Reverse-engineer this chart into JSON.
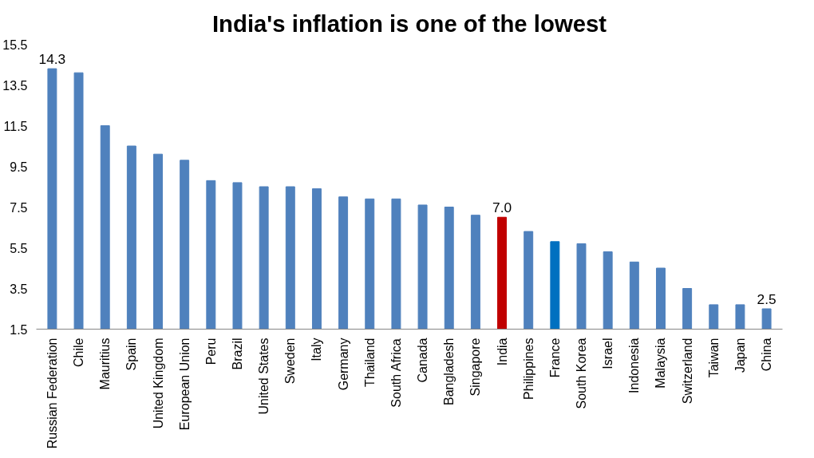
{
  "chart_data": {
    "type": "bar",
    "title": "India's inflation is one of the lowest",
    "categories": [
      "Russian Federation",
      "Chile",
      "Mauritius",
      "Spain",
      "United Kingdom",
      "European Union",
      "Peru",
      "Brazil",
      "United States",
      "Sweden",
      "Italy",
      "Germany",
      "Thailand",
      "South Africa",
      "Canada",
      "Bangladesh",
      "Singapore",
      "India",
      "Philippines",
      "France",
      "South Korea",
      "Israel",
      "Indonesia",
      "Malaysia",
      "Switzerland",
      "Taiwan",
      "Japan",
      "China"
    ],
    "values": [
      14.3,
      14.1,
      11.5,
      10.5,
      10.1,
      9.8,
      8.8,
      8.7,
      8.5,
      8.5,
      8.4,
      8.0,
      7.9,
      7.9,
      7.6,
      7.5,
      7.1,
      7.0,
      6.3,
      5.8,
      5.7,
      5.3,
      4.8,
      4.5,
      3.5,
      2.7,
      2.7,
      2.5
    ],
    "colors": [
      "#4f81bd",
      "#4f81bd",
      "#4f81bd",
      "#4f81bd",
      "#4f81bd",
      "#4f81bd",
      "#4f81bd",
      "#4f81bd",
      "#4f81bd",
      "#4f81bd",
      "#4f81bd",
      "#4f81bd",
      "#4f81bd",
      "#4f81bd",
      "#4f81bd",
      "#4f81bd",
      "#4f81bd",
      "#c00000",
      "#4f81bd",
      "#0070c0",
      "#4f81bd",
      "#4f81bd",
      "#4f81bd",
      "#4f81bd",
      "#4f81bd",
      "#4f81bd",
      "#4f81bd",
      "#4f81bd"
    ],
    "value_labels": [
      "14.3",
      null,
      null,
      null,
      null,
      null,
      null,
      null,
      null,
      null,
      null,
      null,
      null,
      null,
      null,
      null,
      null,
      "7.0",
      null,
      null,
      null,
      null,
      null,
      null,
      null,
      null,
      null,
      "2.5"
    ],
    "ylim": [
      1.5,
      15.5
    ],
    "yticks": [
      1.5,
      3.5,
      5.5,
      7.5,
      9.5,
      11.5,
      13.5,
      15.5
    ],
    "grid": false
  }
}
